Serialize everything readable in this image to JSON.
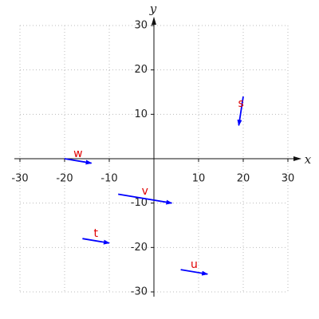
{
  "chart_data": {
    "type": "vector",
    "x_label": "x",
    "y_label": "y",
    "xlim": [
      -30,
      30
    ],
    "ylim": [
      -30,
      30
    ],
    "xticks": [
      -30,
      -20,
      -10,
      10,
      20,
      30
    ],
    "yticks": [
      -30,
      -20,
      -10,
      10,
      20,
      30
    ],
    "grid": true,
    "color": "#0000ff",
    "label_color": "#e00000",
    "vectors": [
      {
        "name": "s",
        "x": 20,
        "y": 14,
        "dx": -1,
        "dy": -6.5
      },
      {
        "name": "w",
        "x": -20,
        "y": 0,
        "dx": 6,
        "dy": -1
      },
      {
        "name": "v",
        "x": -8,
        "y": -8,
        "dx": 12,
        "dy": -2
      },
      {
        "name": "t",
        "x": -16,
        "y": -18,
        "dx": 6,
        "dy": -1
      },
      {
        "name": "u",
        "x": 6,
        "y": -25,
        "dx": 6,
        "dy": -1
      }
    ]
  }
}
